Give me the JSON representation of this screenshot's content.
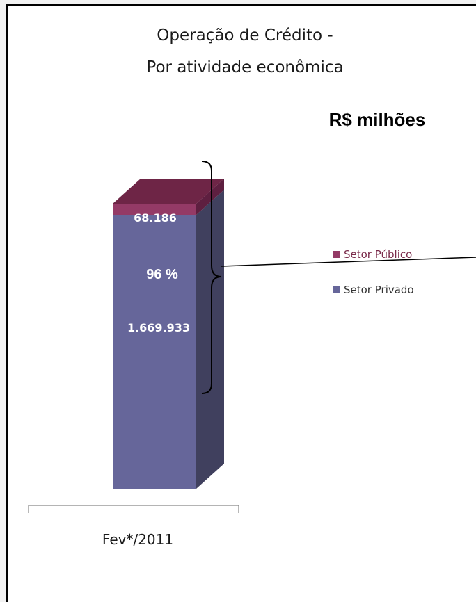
{
  "chart_data": {
    "type": "bar",
    "stacked": true,
    "title": "Operação de Crédito -",
    "subtitle": "Por atividade econômica",
    "unit": "R$ milhões",
    "categories": [
      "Fev*/2011"
    ],
    "series": [
      {
        "name": "Setor Privado",
        "values": [
          1669933
        ],
        "label": "1.669.933",
        "color": "#66669a",
        "legend_text_color": "#333333"
      },
      {
        "name": "Setor Público",
        "values": [
          68186
        ],
        "label": "68.186",
        "color": "#943a66",
        "legend_text_color": "#7a2a4a"
      }
    ],
    "annotation": "96 %",
    "legend_position": "right",
    "grid": false
  }
}
